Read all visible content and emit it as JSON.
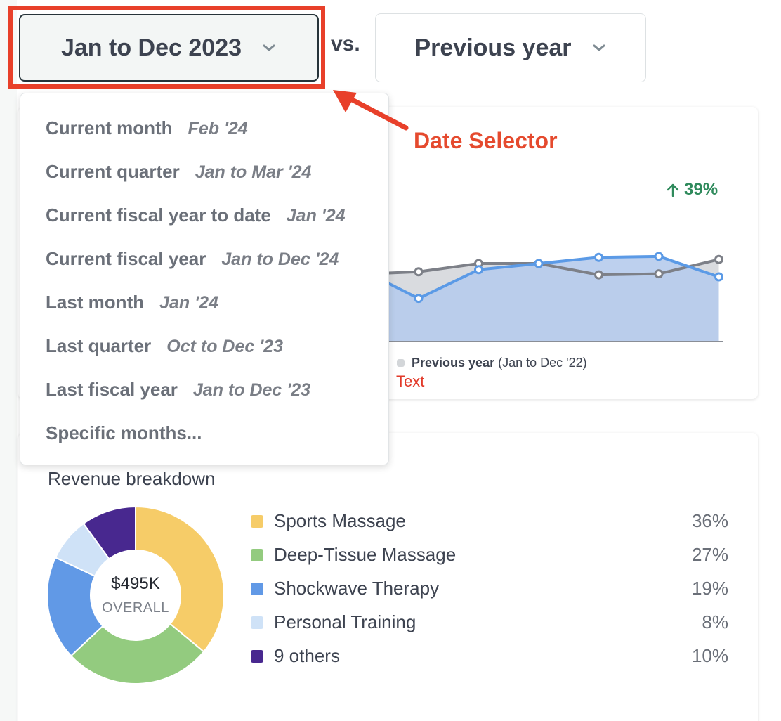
{
  "selectors": {
    "date_range": "Jan to Dec 2023",
    "vs_label": "vs.",
    "compare": "Previous year"
  },
  "annotation": {
    "label": "Date Selector",
    "text_note": "Text",
    "color": "#e8402a"
  },
  "date_menu": {
    "items": [
      {
        "label": "Current month",
        "range": "Feb '24"
      },
      {
        "label": "Current quarter",
        "range": "Jan to Mar '24"
      },
      {
        "label": "Current fiscal year to date",
        "range": "Jan '24"
      },
      {
        "label": "Current fiscal year",
        "range": "Jan to Dec '24"
      },
      {
        "label": "Last month",
        "range": "Jan '24"
      },
      {
        "label": "Last quarter",
        "range": "Oct to Dec '23"
      },
      {
        "label": "Last fiscal year",
        "range": "Jan to Dec '23"
      },
      {
        "label": "Specific months...",
        "range": ""
      }
    ]
  },
  "trend": {
    "change_pct": "39%",
    "change_direction": "up",
    "change_color": "#2f8a5c",
    "legend_previous_name": "Previous year",
    "legend_previous_range": "(Jan to Dec '22)"
  },
  "chart_data": [
    {
      "type": "line",
      "note": "partially hidden behind dropdown; visible tail points only",
      "series": [
        {
          "name": "Previous year",
          "values": [
            null,
            null,
            null,
            null,
            null,
            null,
            0.68,
            0.76,
            0.76,
            0.65,
            0.66,
            0.8
          ],
          "color": "#7d8088"
        },
        {
          "values": [
            null,
            null,
            null,
            null,
            null,
            null,
            0.42,
            0.7,
            0.76,
            0.82,
            0.83,
            0.63
          ],
          "color": "#5b9ae6"
        }
      ],
      "ylim": [
        0,
        1
      ]
    },
    {
      "type": "pie",
      "title": "Revenue breakdown",
      "center_value": "$495K",
      "center_label": "OVERALL",
      "slices": [
        {
          "label": "Sports Massage",
          "value": 36,
          "display": "36%",
          "color": "#f6cc68"
        },
        {
          "label": "Deep-Tissue Massage",
          "value": 27,
          "display": "27%",
          "color": "#93cb7f"
        },
        {
          "label": "Shockwave Therapy",
          "value": 19,
          "display": "19%",
          "color": "#6199e6"
        },
        {
          "label": "Personal Training",
          "value": 8,
          "display": "8%",
          "color": "#cfe2f7"
        },
        {
          "label": "9 others",
          "value": 10,
          "display": "10%",
          "color": "#48288f"
        }
      ]
    }
  ]
}
